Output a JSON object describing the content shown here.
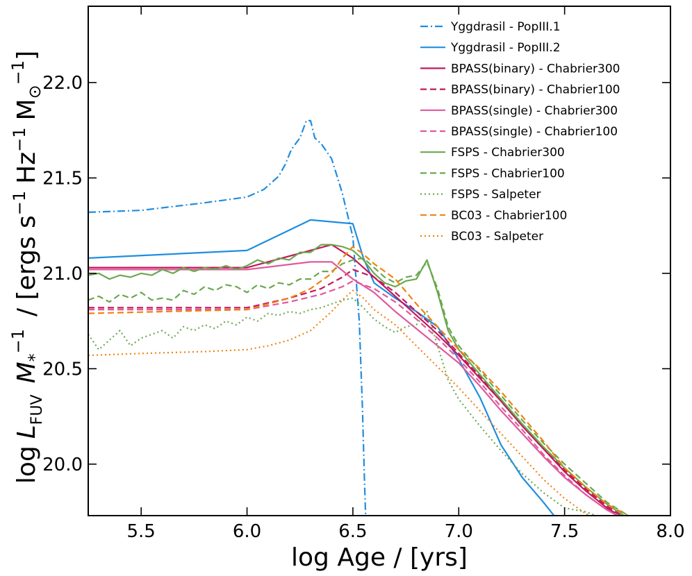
{
  "chart_data": {
    "type": "line",
    "title": "",
    "xlabel": "log  Age / [yrs]",
    "ylabel": "log L_FUV  M_*^-1  / [ergs s^-1 Hz^-1 M_⊙^-1]",
    "ylabel_parts": {
      "log": "log",
      "L": "L",
      "fuv": "FUV",
      "mstar": "M",
      "star": "*",
      "neg1": "−1",
      "rest": "/ [ergs s",
      "hz": "Hz",
      "msun": "M",
      "sun": "⊙",
      "close": "]"
    },
    "xlim": [
      5.25,
      8.0
    ],
    "ylim": [
      19.73,
      22.4
    ],
    "xticks": [
      5.5,
      6.0,
      6.5,
      7.0,
      7.5,
      8.0
    ],
    "xtick_labels": [
      "5.5",
      "6.0",
      "6.5",
      "7.0",
      "7.5",
      "8.0"
    ],
    "yticks": [
      20.0,
      20.5,
      21.0,
      21.5,
      22.0
    ],
    "ytick_labels": [
      "20.0",
      "20.5",
      "21.0",
      "21.5",
      "22.0"
    ],
    "grid": false,
    "legend_position": "top-right",
    "series": [
      {
        "name": "Yggdrasil - PopIII.1",
        "color": "#1f8ddf",
        "dash": "dashdot",
        "x": [
          5.25,
          5.5,
          5.8,
          6.0,
          6.08,
          6.15,
          6.18,
          6.21,
          6.25,
          6.28,
          6.3,
          6.32,
          6.35,
          6.4,
          6.45,
          6.5,
          6.53,
          6.545,
          6.555,
          6.56
        ],
        "y": [
          21.32,
          21.33,
          21.37,
          21.4,
          21.44,
          21.51,
          21.57,
          21.65,
          21.71,
          21.8,
          21.8,
          21.71,
          21.68,
          21.6,
          21.42,
          21.19,
          20.75,
          20.3,
          19.9,
          19.73
        ]
      },
      {
        "name": "Yggdrasil - PopIII.2",
        "color": "#1f8ddf",
        "dash": "solid",
        "x": [
          5.25,
          6.0,
          6.3,
          6.5,
          6.55,
          6.6,
          6.7,
          6.8,
          6.9,
          7.0,
          7.1,
          7.2,
          7.3,
          7.4,
          7.45
        ],
        "y": [
          21.08,
          21.12,
          21.28,
          21.26,
          21.08,
          20.95,
          20.87,
          20.8,
          20.72,
          20.55,
          20.35,
          20.1,
          19.93,
          19.8,
          19.73
        ]
      },
      {
        "name": "BPASS(binary) - Chabrier300",
        "color": "#c2185b",
        "dash": "solid",
        "x": [
          5.25,
          6.0,
          6.4,
          6.5,
          6.6,
          6.7,
          6.8,
          6.9,
          7.0,
          7.1,
          7.2,
          7.3,
          7.4,
          7.5,
          7.6,
          7.7,
          7.76
        ],
        "y": [
          21.03,
          21.03,
          21.15,
          21.08,
          20.98,
          20.88,
          20.78,
          20.68,
          20.57,
          20.45,
          20.33,
          20.2,
          20.08,
          19.96,
          19.86,
          19.77,
          19.73
        ]
      },
      {
        "name": "BPASS(binary) - Chabrier100",
        "color": "#c2185b",
        "dash": "dashed",
        "x": [
          5.25,
          6.0,
          6.2,
          6.35,
          6.45,
          6.5,
          6.6,
          6.7,
          6.8,
          6.9,
          7.0,
          7.1,
          7.2,
          7.3,
          7.4,
          7.5,
          7.6,
          7.7,
          7.77
        ],
        "y": [
          20.82,
          20.82,
          20.87,
          20.92,
          20.98,
          21.02,
          20.98,
          20.9,
          20.8,
          20.7,
          20.58,
          20.46,
          20.33,
          20.2,
          20.08,
          19.97,
          19.87,
          19.78,
          19.73
        ]
      },
      {
        "name": "BPASS(single) - Chabrier300",
        "color": "#e0589d",
        "dash": "solid",
        "x": [
          5.25,
          6.0,
          6.3,
          6.4,
          6.5,
          6.6,
          6.7,
          6.8,
          6.9,
          7.0,
          7.1,
          7.2,
          7.3,
          7.4,
          7.5,
          7.6,
          7.7,
          7.75
        ],
        "y": [
          21.02,
          21.02,
          21.06,
          21.06,
          20.97,
          20.9,
          20.8,
          20.71,
          20.62,
          20.53,
          20.41,
          20.28,
          20.16,
          20.04,
          19.93,
          19.84,
          19.76,
          19.73
        ]
      },
      {
        "name": "BPASS(single) - Chabrier100",
        "color": "#e0589d",
        "dash": "dashed",
        "x": [
          5.25,
          6.0,
          6.2,
          6.35,
          6.45,
          6.5,
          6.6,
          6.7,
          6.8,
          6.9,
          7.0,
          7.1,
          7.2,
          7.3,
          7.4,
          7.5,
          7.6,
          7.7,
          7.76
        ],
        "y": [
          20.81,
          20.81,
          20.85,
          20.89,
          20.93,
          20.96,
          20.92,
          20.85,
          20.76,
          20.66,
          20.55,
          20.43,
          20.3,
          20.18,
          20.05,
          19.94,
          19.84,
          19.76,
          19.73
        ]
      },
      {
        "name": "FSPS - Chabrier300",
        "color": "#6aa84f",
        "dash": "solid",
        "x": [
          5.25,
          5.3,
          5.35,
          5.4,
          5.45,
          5.5,
          5.55,
          5.6,
          5.65,
          5.7,
          5.75,
          5.8,
          5.85,
          5.9,
          5.95,
          6.0,
          6.05,
          6.1,
          6.15,
          6.2,
          6.25,
          6.3,
          6.35,
          6.4,
          6.45,
          6.5,
          6.55,
          6.6,
          6.65,
          6.7,
          6.75,
          6.8,
          6.85,
          6.9,
          6.95,
          7.0,
          7.1,
          7.2,
          7.3,
          7.4,
          7.5,
          7.6,
          7.7,
          7.78
        ],
        "y": [
          20.99,
          21.0,
          20.97,
          20.99,
          20.98,
          21.0,
          20.99,
          21.02,
          21.0,
          21.03,
          21.01,
          21.03,
          21.02,
          21.04,
          21.02,
          21.04,
          21.07,
          21.05,
          21.08,
          21.07,
          21.11,
          21.11,
          21.15,
          21.15,
          21.14,
          21.12,
          21.07,
          21.0,
          20.95,
          20.93,
          20.96,
          20.97,
          21.07,
          20.9,
          20.7,
          20.6,
          20.47,
          20.34,
          20.21,
          20.09,
          19.98,
          19.88,
          19.79,
          19.73
        ]
      },
      {
        "name": "FSPS - Chabrier100",
        "color": "#6aa84f",
        "dash": "dashed",
        "x": [
          5.25,
          5.3,
          5.35,
          5.4,
          5.45,
          5.5,
          5.55,
          5.6,
          5.65,
          5.7,
          5.75,
          5.8,
          5.85,
          5.9,
          5.95,
          6.0,
          6.05,
          6.1,
          6.15,
          6.2,
          6.25,
          6.3,
          6.35,
          6.4,
          6.45,
          6.5,
          6.55,
          6.6,
          6.65,
          6.7,
          6.75,
          6.8,
          6.85,
          6.9,
          6.95,
          7.0,
          7.1,
          7.2,
          7.3,
          7.4,
          7.5,
          7.6,
          7.7,
          7.8
        ],
        "y": [
          20.86,
          20.88,
          20.85,
          20.89,
          20.87,
          20.9,
          20.86,
          20.87,
          20.86,
          20.91,
          20.89,
          20.93,
          20.91,
          20.94,
          20.93,
          20.9,
          20.94,
          20.92,
          20.95,
          20.94,
          20.97,
          20.97,
          21.01,
          21.01,
          21.05,
          21.07,
          21.08,
          21.03,
          20.98,
          20.95,
          20.98,
          20.99,
          21.06,
          20.92,
          20.72,
          20.62,
          20.49,
          20.36,
          20.23,
          20.11,
          20.0,
          19.9,
          19.8,
          19.73
        ]
      },
      {
        "name": "FSPS - Salpeter",
        "color": "#6aa84f",
        "dash": "dotted",
        "x": [
          5.25,
          5.3,
          5.35,
          5.4,
          5.45,
          5.5,
          5.55,
          5.6,
          5.65,
          5.7,
          5.75,
          5.8,
          5.85,
          5.9,
          5.95,
          6.0,
          6.05,
          6.1,
          6.15,
          6.2,
          6.25,
          6.3,
          6.35,
          6.4,
          6.45,
          6.5,
          6.55,
          6.6,
          6.65,
          6.7,
          6.75,
          6.8,
          6.85,
          6.9,
          6.95,
          7.0,
          7.1,
          7.2,
          7.3,
          7.4,
          7.5,
          7.6,
          7.65
        ],
        "y": [
          20.68,
          20.6,
          20.65,
          20.7,
          20.62,
          20.66,
          20.68,
          20.7,
          20.66,
          20.72,
          20.7,
          20.73,
          20.71,
          20.75,
          20.73,
          20.77,
          20.75,
          20.79,
          20.78,
          20.8,
          20.79,
          20.81,
          20.82,
          20.84,
          20.86,
          20.87,
          20.82,
          20.76,
          20.72,
          20.69,
          20.72,
          20.73,
          20.8,
          20.62,
          20.44,
          20.34,
          20.2,
          20.07,
          19.95,
          19.85,
          19.77,
          19.75,
          19.73
        ]
      },
      {
        "name": "BC03 - Chabrier100",
        "color": "#f0820f",
        "dash": "dashed",
        "x": [
          5.25,
          6.0,
          6.2,
          6.3,
          6.4,
          6.45,
          6.5,
          6.55,
          6.6,
          6.7,
          6.8,
          6.9,
          7.0,
          7.1,
          7.2,
          7.3,
          7.4,
          7.5,
          7.6,
          7.7,
          7.8
        ],
        "y": [
          20.79,
          20.81,
          20.87,
          20.92,
          21.0,
          21.08,
          21.14,
          21.1,
          21.05,
          20.97,
          20.84,
          20.72,
          20.6,
          20.5,
          20.38,
          20.25,
          20.12,
          19.98,
          19.88,
          19.79,
          19.73
        ]
      },
      {
        "name": "BC03 - Salpeter",
        "color": "#f0820f",
        "dash": "dotted",
        "x": [
          5.25,
          5.5,
          5.8,
          6.0,
          6.1,
          6.2,
          6.3,
          6.35,
          6.4,
          6.45,
          6.5,
          6.55,
          6.6,
          6.7,
          6.8,
          6.9,
          7.0,
          7.1,
          7.2,
          7.3,
          7.4,
          7.5,
          7.6,
          7.62
        ],
        "y": [
          20.57,
          20.58,
          20.59,
          20.6,
          20.62,
          20.65,
          20.7,
          20.75,
          20.8,
          20.86,
          20.91,
          20.87,
          20.81,
          20.73,
          20.62,
          20.51,
          20.4,
          20.28,
          20.16,
          20.04,
          19.92,
          19.82,
          19.74,
          19.73
        ]
      }
    ]
  }
}
